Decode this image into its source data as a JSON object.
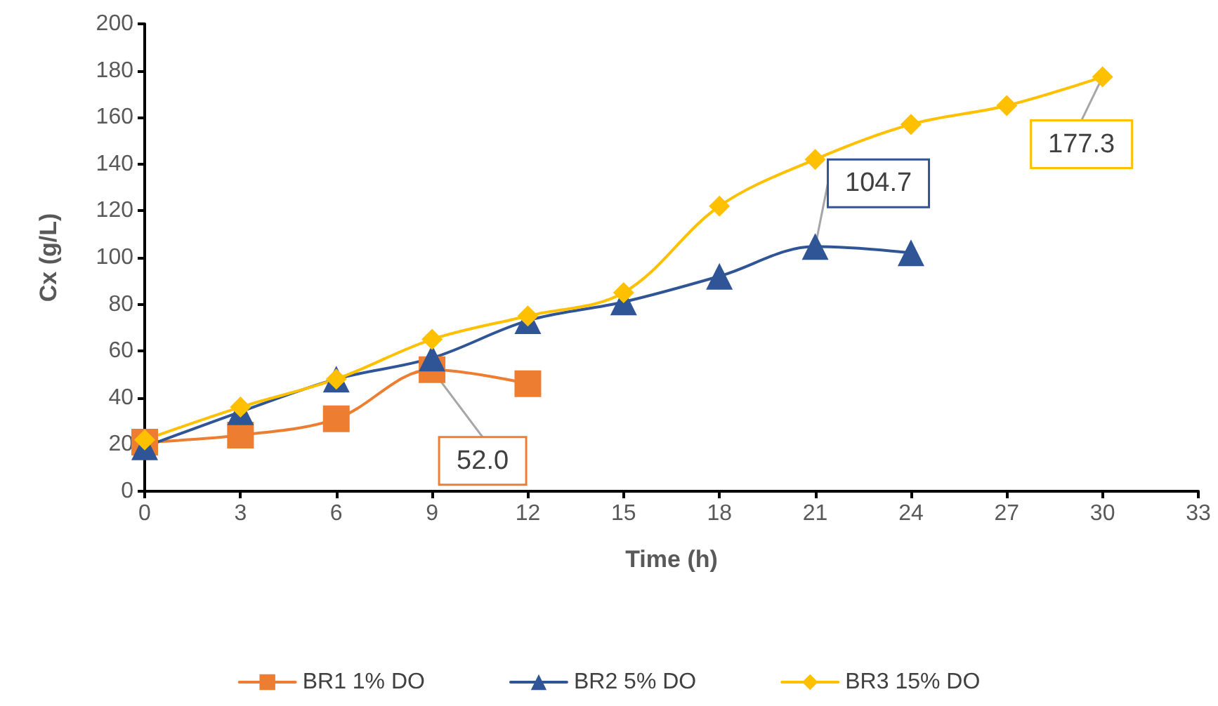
{
  "chart_data": {
    "type": "line",
    "xlabel": "Time (h)",
    "ylabel": "Cx (g/L)",
    "xlim": [
      0,
      33
    ],
    "xticks": [
      0,
      3,
      6,
      9,
      12,
      15,
      18,
      21,
      24,
      27,
      30,
      33
    ],
    "ylim": [
      0,
      200
    ],
    "yticks": [
      0,
      20,
      40,
      60,
      80,
      100,
      120,
      140,
      160,
      180,
      200
    ],
    "grid": false,
    "legend": "bottom",
    "line_style": "solid",
    "series": [
      {
        "name": "BR1 1% DO",
        "color": "#ed7d31",
        "marker": "square",
        "x": [
          0,
          3,
          6,
          9,
          12
        ],
        "values": [
          21,
          24,
          31,
          52.0,
          46
        ]
      },
      {
        "name": "BR2 5% DO",
        "color": "#2f5597",
        "marker": "triangle",
        "x": [
          0,
          3,
          6,
          9,
          12,
          15,
          18,
          21,
          24
        ],
        "values": [
          19,
          34,
          48,
          57,
          73,
          81,
          92,
          104.7,
          102
        ]
      },
      {
        "name": "BR3 15% DO",
        "color": "#ffc000",
        "marker": "diamond",
        "x": [
          0,
          3,
          6,
          9,
          12,
          15,
          18,
          21,
          24,
          27,
          30
        ],
        "values": [
          22,
          36,
          48,
          65,
          75,
          85,
          122,
          142,
          157,
          165,
          177.3
        ]
      }
    ],
    "annotations": [
      {
        "text": "52.0",
        "x": 9,
        "y": 52.0
      },
      {
        "text": "104.7",
        "x": 21,
        "y": 104.7
      },
      {
        "text": "177.3",
        "x": 30,
        "y": 177.3
      }
    ]
  }
}
